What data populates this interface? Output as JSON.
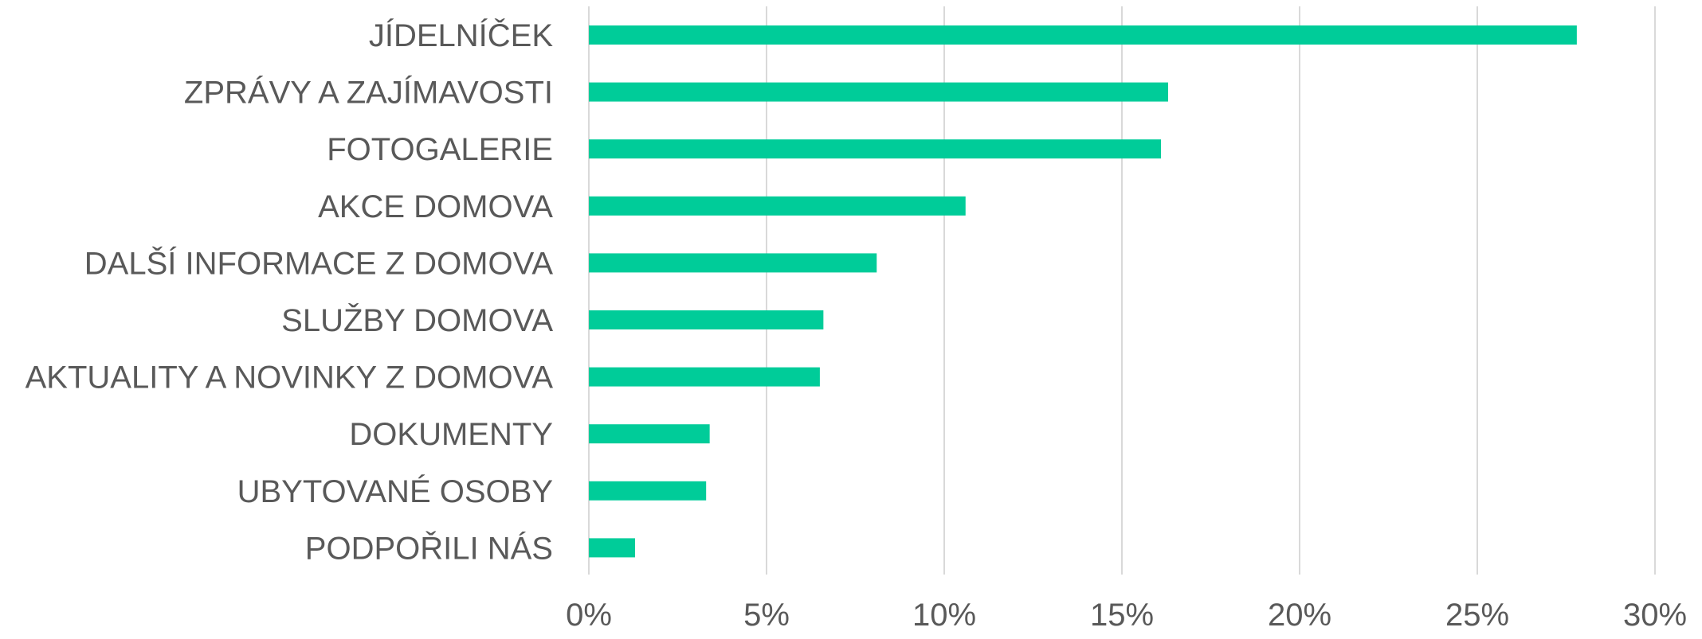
{
  "chart_data": {
    "type": "bar",
    "orientation": "horizontal",
    "categories": [
      "JÍDELNÍČEK",
      "ZPRÁVY A ZAJÍMAVOSTI",
      "FOTOGALERIE",
      "AKCE DOMOVA",
      "DALŠÍ INFORMACE Z DOMOVA",
      "SLUŽBY DOMOVA",
      "AKTUALITY A NOVINKY Z DOMOVA",
      "DOKUMENTY",
      "UBYTOVANÉ OSOBY",
      "PODPOŘILI NÁS"
    ],
    "values": [
      27.8,
      16.3,
      16.1,
      10.6,
      8.1,
      6.6,
      6.5,
      3.4,
      3.3,
      1.3
    ],
    "unit": "%",
    "xlim": [
      0,
      30
    ],
    "ticks": [
      0,
      5,
      10,
      15,
      20,
      25,
      30
    ],
    "tick_labels": [
      "0%",
      "5%",
      "10%",
      "15%",
      "20%",
      "25%",
      "30%"
    ],
    "title": "",
    "xlabel": "",
    "ylabel": "",
    "grid": "vertical",
    "legend": "none",
    "colors": {
      "bar": "#00CC99",
      "grid": "#D9D9D9",
      "text": "#595959"
    }
  }
}
